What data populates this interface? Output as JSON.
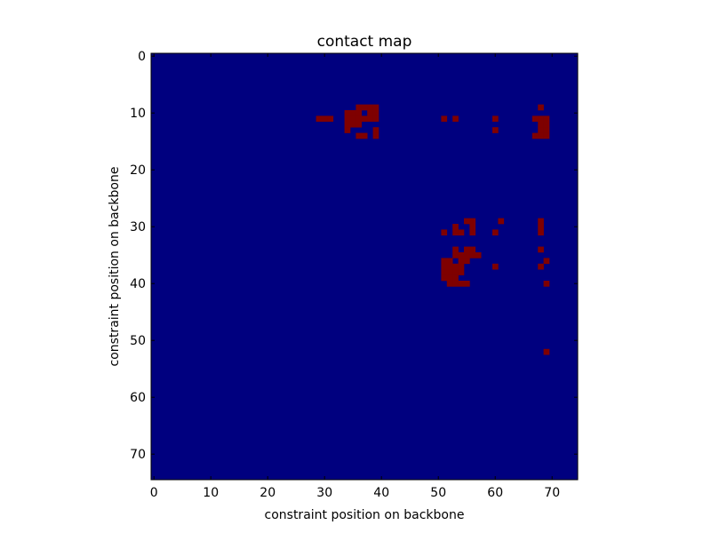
{
  "chart_data": {
    "type": "heatmap",
    "title": "contact map",
    "xlabel": "constraint position on backbone",
    "ylabel": "constraint position on backbone",
    "xlim": [
      0,
      75
    ],
    "ylim": [
      75,
      0
    ],
    "x_ticks": [
      0,
      10,
      20,
      30,
      40,
      50,
      60,
      70
    ],
    "y_ticks": [
      0,
      10,
      20,
      30,
      40,
      50,
      60,
      70
    ],
    "grid": false,
    "legend": "none",
    "colors": {
      "background": "#00007f",
      "contact": "#7f0000"
    },
    "contacts": [
      [
        36,
        9
      ],
      [
        37,
        9
      ],
      [
        38,
        9
      ],
      [
        39,
        9
      ],
      [
        68,
        9
      ],
      [
        34,
        10
      ],
      [
        35,
        10
      ],
      [
        36,
        10
      ],
      [
        38,
        10
      ],
      [
        39,
        10
      ],
      [
        29,
        11
      ],
      [
        30,
        11
      ],
      [
        31,
        11
      ],
      [
        34,
        11
      ],
      [
        35,
        11
      ],
      [
        36,
        11
      ],
      [
        37,
        11
      ],
      [
        38,
        11
      ],
      [
        39,
        11
      ],
      [
        51,
        11
      ],
      [
        53,
        11
      ],
      [
        60,
        11
      ],
      [
        67,
        11
      ],
      [
        68,
        11
      ],
      [
        69,
        11
      ],
      [
        34,
        12
      ],
      [
        35,
        12
      ],
      [
        36,
        12
      ],
      [
        68,
        12
      ],
      [
        69,
        12
      ],
      [
        34,
        13
      ],
      [
        39,
        13
      ],
      [
        60,
        13
      ],
      [
        68,
        13
      ],
      [
        69,
        13
      ],
      [
        36,
        14
      ],
      [
        37,
        14
      ],
      [
        39,
        14
      ],
      [
        67,
        14
      ],
      [
        68,
        14
      ],
      [
        69,
        14
      ],
      [
        55,
        29
      ],
      [
        56,
        29
      ],
      [
        61,
        29
      ],
      [
        68,
        29
      ],
      [
        53,
        30
      ],
      [
        56,
        30
      ],
      [
        68,
        30
      ],
      [
        51,
        31
      ],
      [
        53,
        31
      ],
      [
        54,
        31
      ],
      [
        56,
        31
      ],
      [
        60,
        31
      ],
      [
        68,
        31
      ],
      [
        53,
        34
      ],
      [
        55,
        34
      ],
      [
        56,
        34
      ],
      [
        68,
        34
      ],
      [
        53,
        35
      ],
      [
        54,
        35
      ],
      [
        55,
        35
      ],
      [
        56,
        35
      ],
      [
        57,
        35
      ],
      [
        51,
        36
      ],
      [
        52,
        36
      ],
      [
        54,
        36
      ],
      [
        55,
        36
      ],
      [
        69,
        36
      ],
      [
        51,
        37
      ],
      [
        52,
        37
      ],
      [
        53,
        37
      ],
      [
        54,
        37
      ],
      [
        60,
        37
      ],
      [
        68,
        37
      ],
      [
        51,
        38
      ],
      [
        52,
        38
      ],
      [
        53,
        38
      ],
      [
        54,
        38
      ],
      [
        51,
        39
      ],
      [
        52,
        39
      ],
      [
        53,
        39
      ],
      [
        52,
        40
      ],
      [
        53,
        40
      ],
      [
        54,
        40
      ],
      [
        55,
        40
      ],
      [
        69,
        40
      ],
      [
        69,
        52
      ]
    ]
  }
}
